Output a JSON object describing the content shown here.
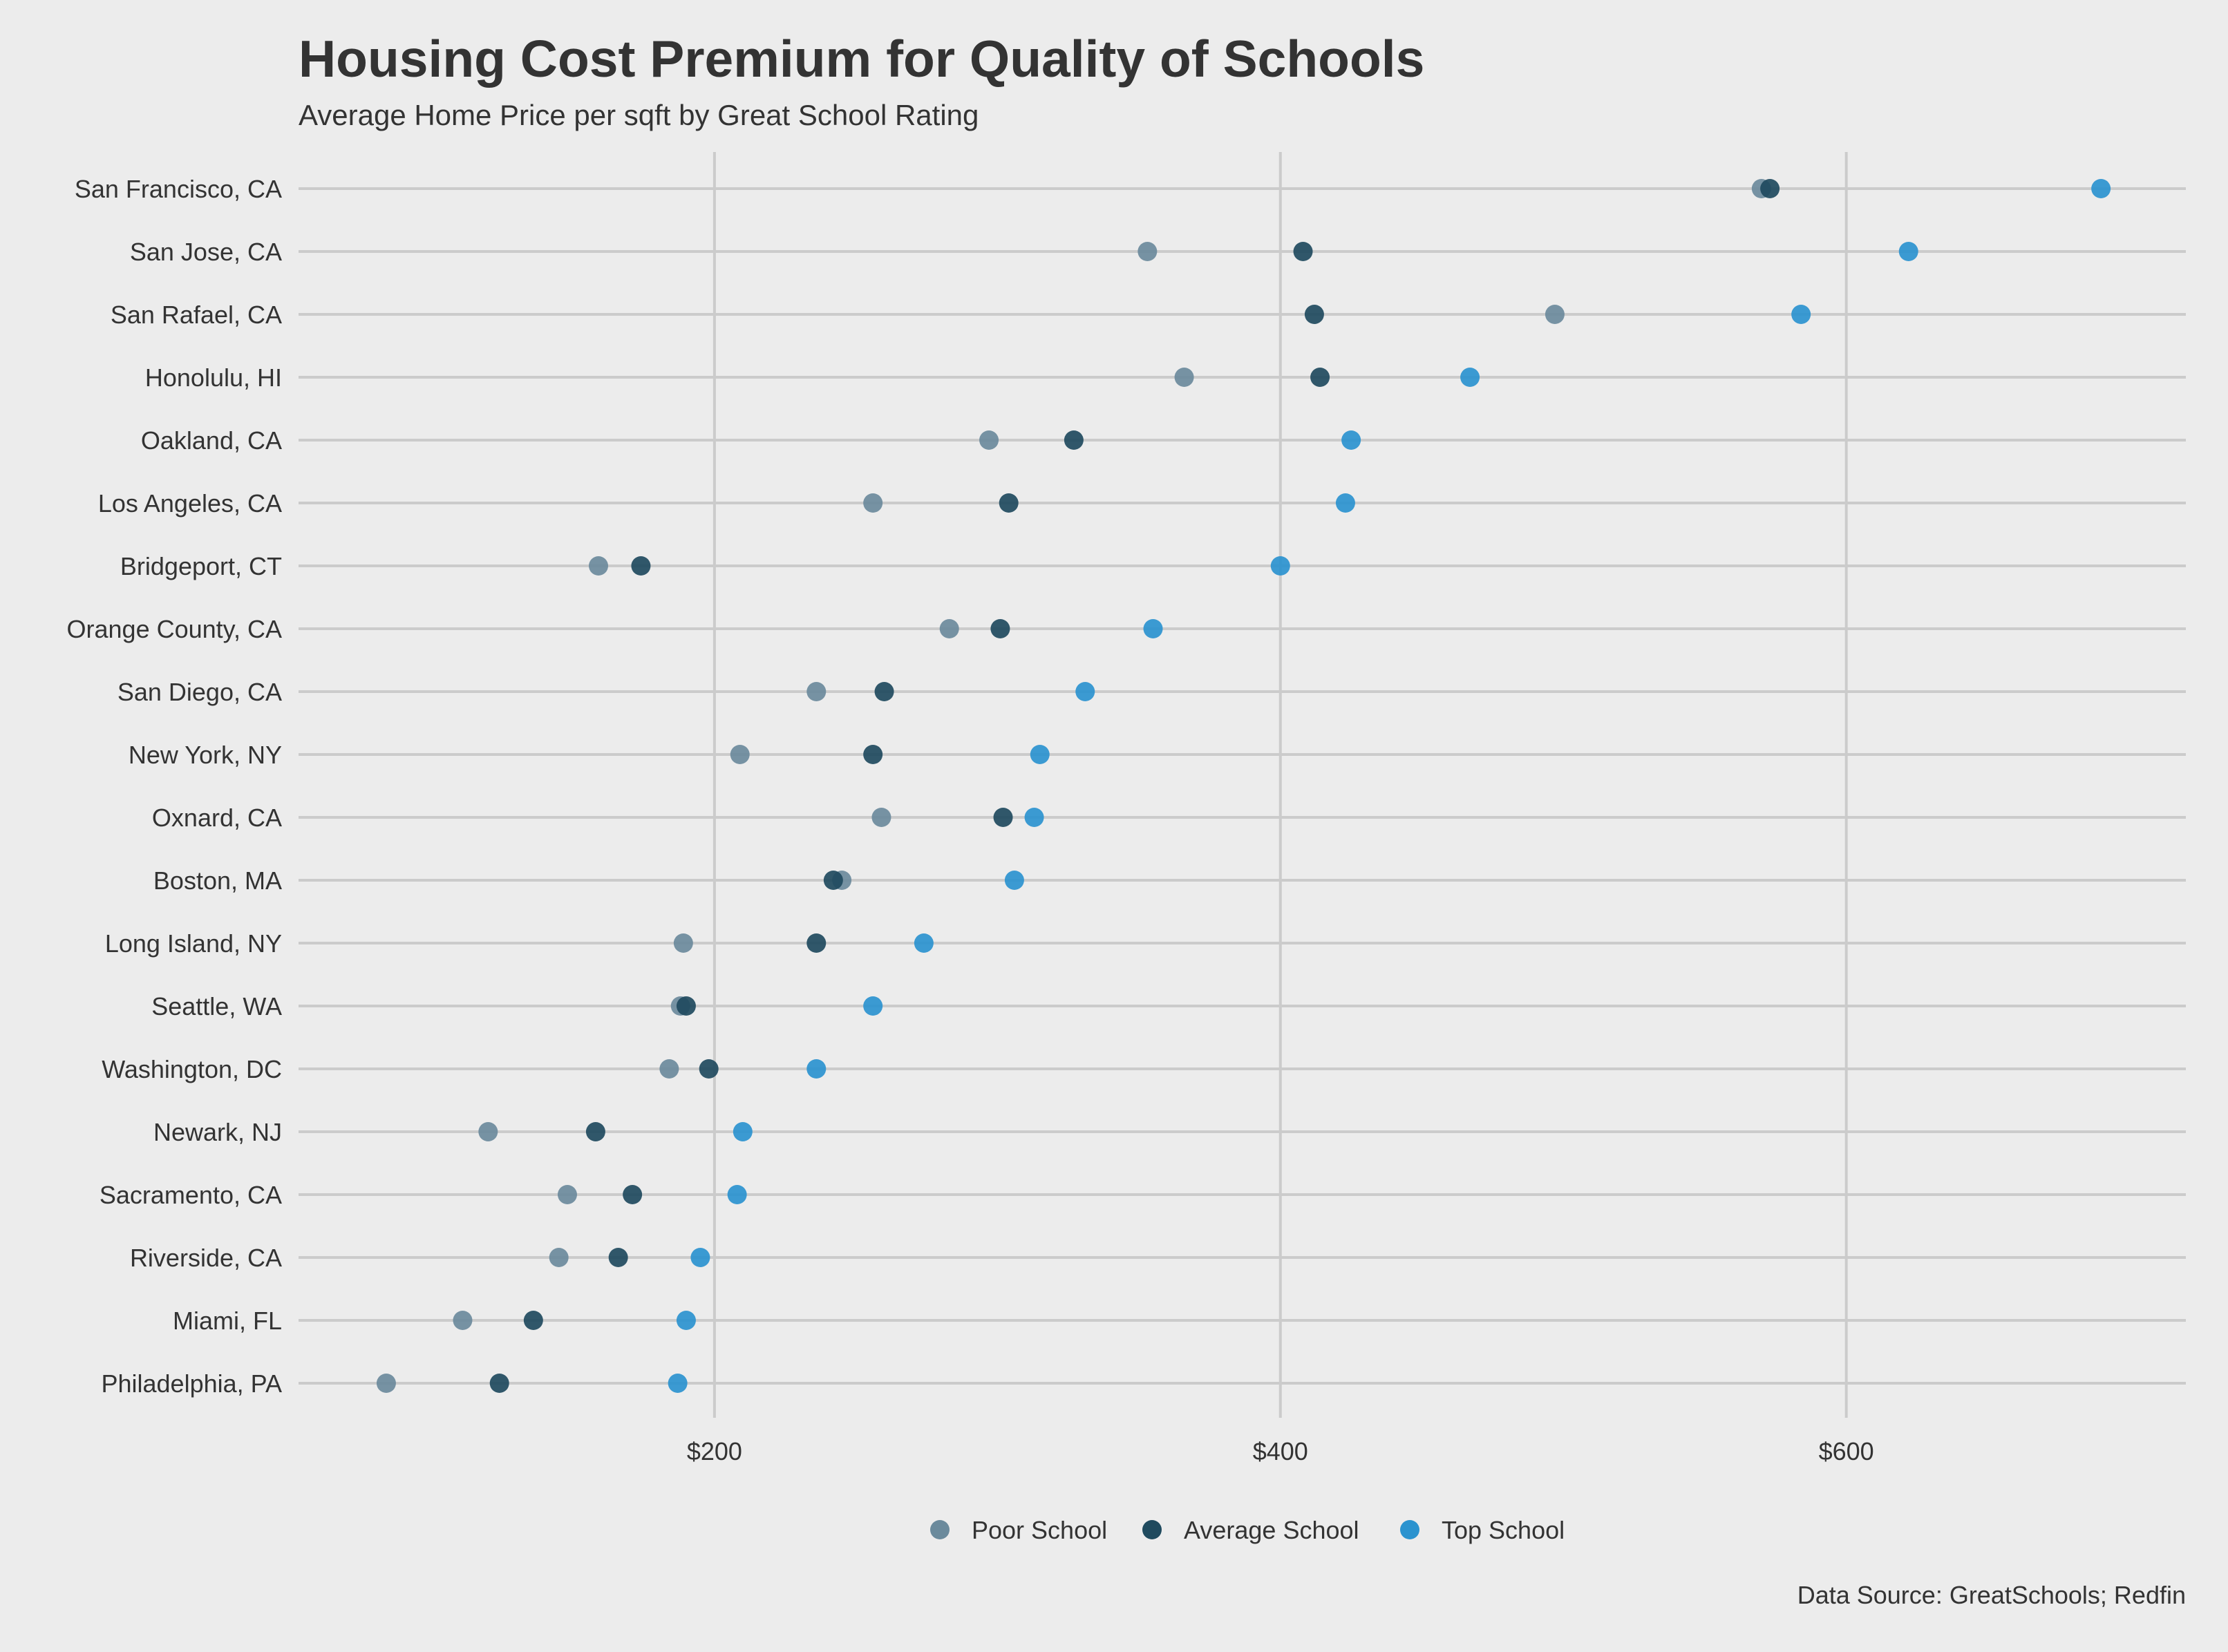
{
  "chart_data": {
    "type": "scatter",
    "style": "dot-plot",
    "title": "Housing Cost Premium for Quality of Schools",
    "subtitle": "Average Home Price per sqft by Great School Rating",
    "caption": "Data Source: GreatSchools; Redfin",
    "xlabel": "",
    "ylabel": "",
    "xlim": [
      53,
      720
    ],
    "xticks": [
      200,
      400,
      600
    ],
    "xtick_labels": [
      "$200",
      "$400",
      "$600"
    ],
    "grid": true,
    "legend_position": "bottom",
    "categories": [
      "San Francisco, CA",
      "San Jose, CA",
      "San Rafael, CA",
      "Honolulu, HI",
      "Oakland, CA",
      "Los Angeles, CA",
      "Bridgeport, CT",
      "Orange County, CA",
      "San Diego, CA",
      "New York, NY",
      "Oxnard, CA",
      "Boston, MA",
      "Long Island, NY",
      "Seattle, WA",
      "Washington, DC",
      "Newark, NJ",
      "Sacramento, CA",
      "Riverside, CA",
      "Miami, FL",
      "Philadelphia, PA"
    ],
    "series": [
      {
        "name": "Poor School",
        "color": "#6b8a9c",
        "values": [
          570,
          353,
          497,
          366,
          297,
          256,
          159,
          283,
          236,
          209,
          259,
          245,
          189,
          188,
          184,
          120,
          148,
          145,
          111,
          84
        ]
      },
      {
        "name": "Average School",
        "color": "#1f4a5e",
        "values": [
          573,
          408,
          412,
          414,
          327,
          304,
          174,
          301,
          260,
          256,
          302,
          242,
          236,
          190,
          198,
          158,
          171,
          166,
          136,
          124
        ]
      },
      {
        "name": "Top School",
        "color": "#2b93cf",
        "values": [
          690,
          622,
          584,
          467,
          425,
          423,
          400,
          355,
          331,
          315,
          313,
          306,
          274,
          256,
          236,
          210,
          208,
          195,
          190,
          187
        ]
      }
    ]
  }
}
